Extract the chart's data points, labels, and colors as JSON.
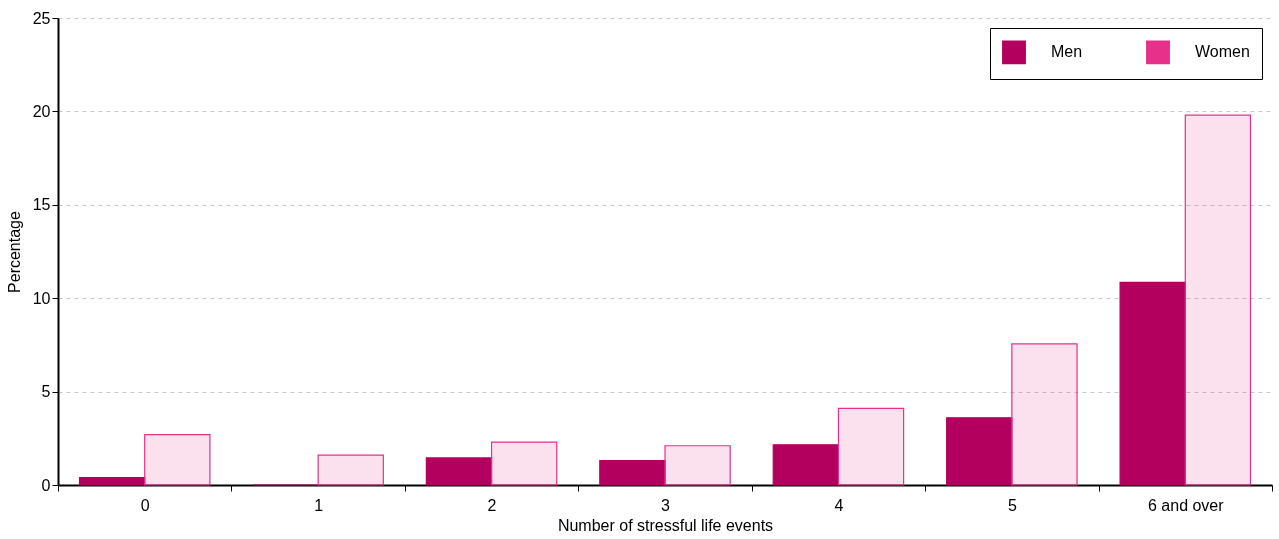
{
  "chart_data": {
    "type": "bar",
    "xlabel": "Number of stressful life events",
    "ylabel": "Percentage",
    "categories": [
      "0",
      "1",
      "2",
      "3",
      "4",
      "5",
      "6 and over"
    ],
    "series": [
      {
        "name": "Men",
        "color": "#b3005f",
        "values": [
          0.4,
          0,
          1.45,
          1.3,
          2.15,
          3.6,
          10.85
        ]
      },
      {
        "name": "Women",
        "color": "#e6308a",
        "values": [
          2.7,
          1.6,
          2.3,
          2.1,
          4.1,
          7.55,
          19.8
        ]
      }
    ],
    "ylim": [
      0,
      25
    ],
    "yticks": [
      0,
      5,
      10,
      15,
      20,
      25
    ],
    "grid": "y",
    "legend": "top right"
  }
}
